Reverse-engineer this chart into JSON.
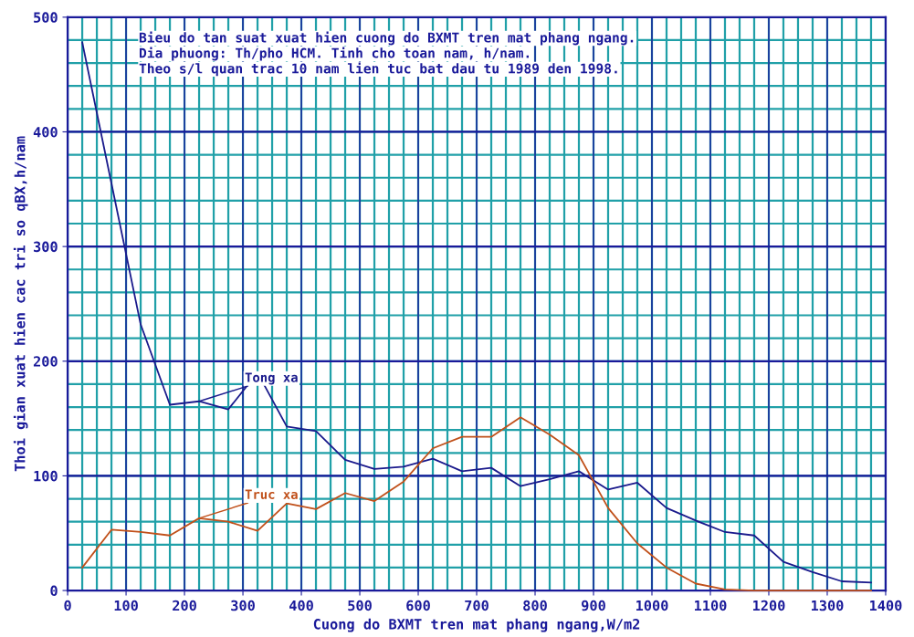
{
  "chart_data": {
    "type": "line",
    "title": "Bieu do tan suat xuat hien cuong do BXMT tren mat phang ngang.",
    "subtitle": "Dia phuong: Th/pho HCM. Tinh cho toan nam, h/nam.",
    "annotations": [
      "Theo s/l quan trac 10 nam lien tuc bat dau tu 1989 den 1998."
    ],
    "xlabel": "Cuong do BXMT tren mat phang ngang,W/m2",
    "ylabel": "Thoi gian xuat hien cac tri so qBX,h/nam",
    "x": [
      25,
      75,
      125,
      175,
      225,
      275,
      325,
      375,
      425,
      475,
      525,
      575,
      625,
      675,
      725,
      775,
      825,
      875,
      925,
      975,
      1025,
      1075,
      1125,
      1175,
      1225,
      1275,
      1325,
      1375
    ],
    "series": [
      {
        "name": "Tong xa",
        "color": "#1a1a8c",
        "values": [
          478,
          355,
          232,
          162,
          165,
          158,
          190,
          143,
          139,
          114,
          106,
          108,
          115,
          104,
          107,
          91,
          97,
          104,
          88,
          94,
          72,
          61,
          51,
          48,
          25,
          16,
          8,
          7
        ]
      },
      {
        "name": "Truc xa",
        "color": "#c0501a",
        "values": [
          20,
          53,
          51,
          48,
          63,
          60,
          52,
          76,
          71,
          85,
          78,
          95,
          124,
          134,
          134,
          151,
          136,
          118,
          72,
          41,
          20,
          6,
          1,
          0,
          0,
          0,
          0,
          0
        ]
      }
    ],
    "xlim": [
      0,
      1400
    ],
    "xticks": [
      0,
      100,
      200,
      300,
      400,
      500,
      600,
      700,
      800,
      900,
      1000,
      1100,
      1200,
      1300,
      1400
    ],
    "ylim": [
      0,
      500
    ],
    "yticks": [
      0,
      100,
      200,
      300,
      400,
      500
    ],
    "grid": true,
    "legend": false,
    "marker": "none",
    "line_style": "solid"
  }
}
